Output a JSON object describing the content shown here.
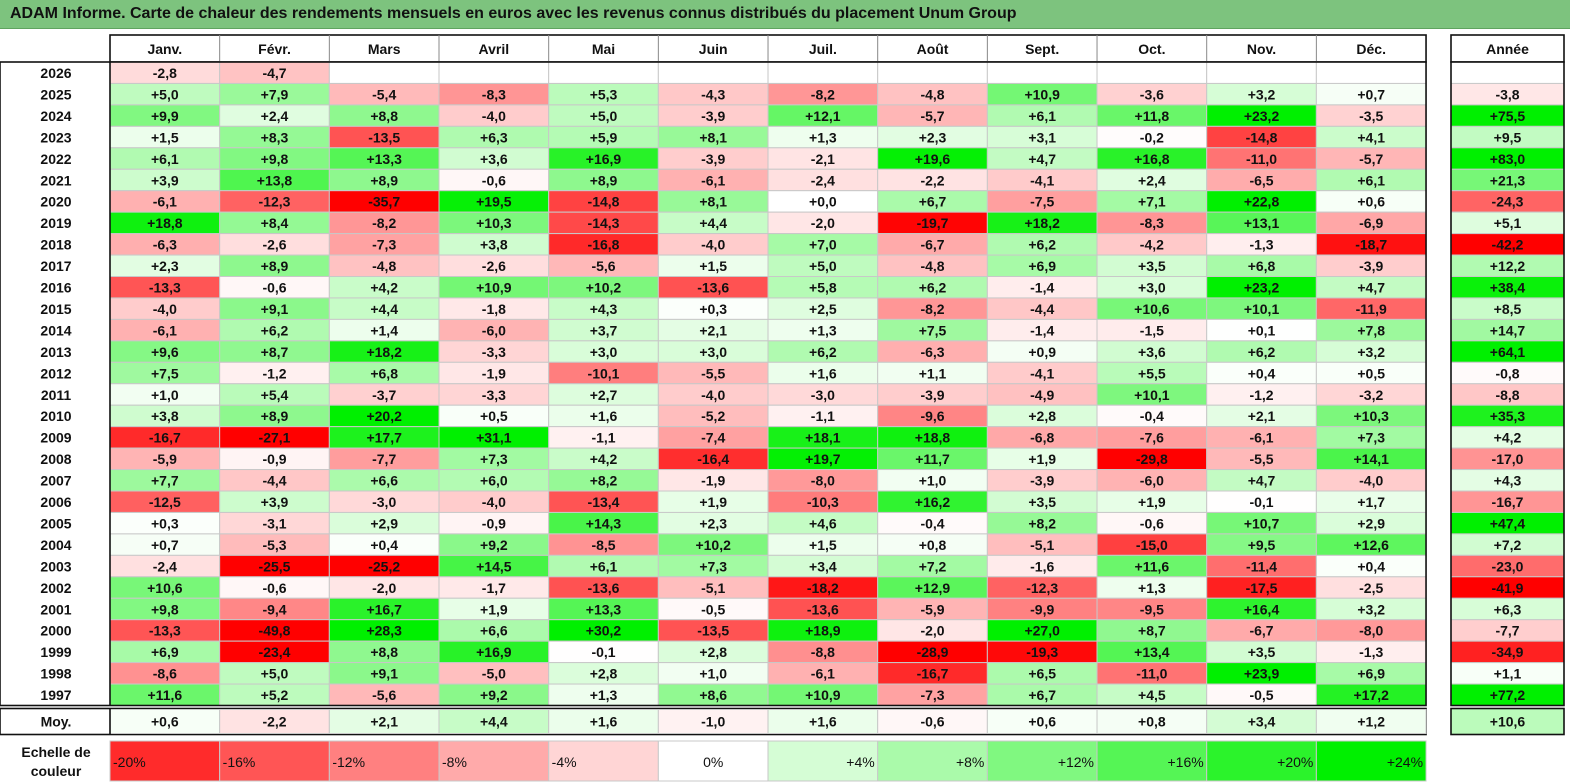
{
  "title": "ADAM Informe. Carte de chaleur des rendements mensuels en euros avec les revenus connus distribués du placement Unum Group",
  "colors": {
    "title_bg": "#7dc37e",
    "positive_max": "#00f000",
    "negative_max": "#ff0000",
    "neutral": "#ffffff"
  },
  "chart_data": {
    "type": "heatmap",
    "title": "ADAM Informe. Carte de chaleur des rendements mensuels en euros avec les revenus connus distribués du placement Unum Group",
    "months": [
      "Janv.",
      "Févr.",
      "Mars",
      "Avril",
      "Mai",
      "Juin",
      "Juil.",
      "Août",
      "Sept.",
      "Oct.",
      "Nov.",
      "Déc."
    ],
    "year_header": "Année",
    "rows": [
      {
        "year": "2026",
        "months": [
          "-2,8",
          "-4,7",
          "",
          "",
          "",
          "",
          "",
          "",
          "",
          "",
          "",
          ""
        ],
        "annual": ""
      },
      {
        "year": "2025",
        "months": [
          "+5,0",
          "+7,9",
          "-5,4",
          "-8,3",
          "+5,3",
          "-4,3",
          "-8,2",
          "-4,8",
          "+10,9",
          "-3,6",
          "+3,2",
          "+0,7"
        ],
        "annual": "-3,8"
      },
      {
        "year": "2024",
        "months": [
          "+9,9",
          "+2,4",
          "+8,8",
          "-4,0",
          "+5,0",
          "-3,9",
          "+12,1",
          "-5,7",
          "+6,1",
          "+11,8",
          "+23,2",
          "-3,5"
        ],
        "annual": "+75,5"
      },
      {
        "year": "2023",
        "months": [
          "+1,5",
          "+8,3",
          "-13,5",
          "+6,3",
          "+5,9",
          "+8,1",
          "+1,3",
          "+2,3",
          "+3,1",
          "-0,2",
          "-14,8",
          "+4,1"
        ],
        "annual": "+9,5"
      },
      {
        "year": "2022",
        "months": [
          "+6,1",
          "+9,8",
          "+13,3",
          "+3,6",
          "+16,9",
          "-3,9",
          "-2,1",
          "+19,6",
          "+4,7",
          "+16,8",
          "-11,0",
          "-5,7"
        ],
        "annual": "+83,0"
      },
      {
        "year": "2021",
        "months": [
          "+3,9",
          "+13,8",
          "+8,9",
          "-0,6",
          "+8,9",
          "-6,1",
          "-2,4",
          "-2,2",
          "-4,1",
          "+2,4",
          "-6,5",
          "+6,1"
        ],
        "annual": "+21,3"
      },
      {
        "year": "2020",
        "months": [
          "-6,1",
          "-12,3",
          "-35,7",
          "+19,5",
          "-14,8",
          "+8,1",
          "+0,0",
          "+6,7",
          "-7,5",
          "+7,1",
          "+22,8",
          "+0,6"
        ],
        "annual": "-24,3"
      },
      {
        "year": "2019",
        "months": [
          "+18,8",
          "+8,4",
          "-8,2",
          "+10,3",
          "-14,3",
          "+4,4",
          "-2,0",
          "-19,7",
          "+18,2",
          "-8,3",
          "+13,1",
          "-6,9"
        ],
        "annual": "+5,1"
      },
      {
        "year": "2018",
        "months": [
          "-6,3",
          "-2,6",
          "-7,3",
          "+3,8",
          "-16,8",
          "-4,0",
          "+7,0",
          "-6,7",
          "+6,2",
          "-4,2",
          "-1,3",
          "-18,7"
        ],
        "annual": "-42,2"
      },
      {
        "year": "2017",
        "months": [
          "+2,3",
          "+8,9",
          "-4,8",
          "-2,6",
          "-5,6",
          "+1,5",
          "+5,0",
          "-4,8",
          "+6,9",
          "+3,5",
          "+6,8",
          "-3,9"
        ],
        "annual": "+12,2"
      },
      {
        "year": "2016",
        "months": [
          "-13,3",
          "-0,6",
          "+4,2",
          "+10,9",
          "+10,2",
          "-13,6",
          "+5,8",
          "+6,2",
          "-1,4",
          "+3,0",
          "+23,2",
          "+4,7"
        ],
        "annual": "+38,4"
      },
      {
        "year": "2015",
        "months": [
          "-4,0",
          "+9,1",
          "+4,4",
          "-1,8",
          "+4,3",
          "+0,3",
          "+2,5",
          "-8,2",
          "-4,4",
          "+10,6",
          "+10,1",
          "-11,9"
        ],
        "annual": "+8,5"
      },
      {
        "year": "2014",
        "months": [
          "-6,1",
          "+6,2",
          "+1,4",
          "-6,0",
          "+3,7",
          "+2,1",
          "+1,3",
          "+7,5",
          "-1,4",
          "-1,5",
          "+0,1",
          "+7,8"
        ],
        "annual": "+14,7"
      },
      {
        "year": "2013",
        "months": [
          "+9,6",
          "+8,7",
          "+18,2",
          "-3,3",
          "+3,0",
          "+3,0",
          "+6,2",
          "-6,3",
          "+0,9",
          "+3,6",
          "+6,2",
          "+3,2"
        ],
        "annual": "+64,1"
      },
      {
        "year": "2012",
        "months": [
          "+7,5",
          "-1,2",
          "+6,8",
          "-1,9",
          "-10,1",
          "-5,5",
          "+1,6",
          "+1,1",
          "-4,1",
          "+5,5",
          "+0,4",
          "+0,5"
        ],
        "annual": "-0,8"
      },
      {
        "year": "2011",
        "months": [
          "+1,0",
          "+5,4",
          "-3,7",
          "-3,3",
          "+2,7",
          "-4,0",
          "-3,0",
          "-3,9",
          "-4,9",
          "+10,1",
          "-1,2",
          "-3,2"
        ],
        "annual": "-8,8"
      },
      {
        "year": "2010",
        "months": [
          "+3,8",
          "+8,9",
          "+20,2",
          "+0,5",
          "+1,6",
          "-5,2",
          "-1,1",
          "-9,6",
          "+2,8",
          "-0,4",
          "+2,1",
          "+10,3"
        ],
        "annual": "+35,3"
      },
      {
        "year": "2009",
        "months": [
          "-16,7",
          "-27,1",
          "+17,7",
          "+31,1",
          "-1,1",
          "-7,4",
          "+18,1",
          "+18,8",
          "-6,8",
          "-7,6",
          "-6,1",
          "+7,3"
        ],
        "annual": "+4,2"
      },
      {
        "year": "2008",
        "months": [
          "-5,9",
          "-0,9",
          "-7,7",
          "+7,3",
          "+4,2",
          "-16,4",
          "+19,7",
          "+11,7",
          "+1,9",
          "-29,8",
          "-5,5",
          "+14,1"
        ],
        "annual": "-17,0"
      },
      {
        "year": "2007",
        "months": [
          "+7,7",
          "-4,4",
          "+6,6",
          "+6,0",
          "+8,2",
          "-1,9",
          "-8,0",
          "+1,0",
          "-3,9",
          "-6,0",
          "+4,7",
          "-4,0"
        ],
        "annual": "+4,3"
      },
      {
        "year": "2006",
        "months": [
          "-12,5",
          "+3,9",
          "-3,0",
          "-4,0",
          "-13,4",
          "+1,9",
          "-10,3",
          "+16,2",
          "+3,5",
          "+1,9",
          "-0,1",
          "+1,7"
        ],
        "annual": "-16,7"
      },
      {
        "year": "2005",
        "months": [
          "+0,3",
          "-3,1",
          "+2,9",
          "-0,9",
          "+14,3",
          "+2,3",
          "+4,6",
          "-0,4",
          "+8,2",
          "-0,6",
          "+10,7",
          "+2,9"
        ],
        "annual": "+47,4"
      },
      {
        "year": "2004",
        "months": [
          "+0,7",
          "-5,3",
          "+0,4",
          "+9,2",
          "-8,5",
          "+10,2",
          "+1,5",
          "+0,8",
          "-5,1",
          "-15,0",
          "+9,5",
          "+12,6"
        ],
        "annual": "+7,2"
      },
      {
        "year": "2003",
        "months": [
          "-2,4",
          "-25,5",
          "-25,2",
          "+14,5",
          "+6,1",
          "+7,3",
          "+3,4",
          "+7,2",
          "-1,6",
          "+11,6",
          "-11,4",
          "+0,4"
        ],
        "annual": "-23,0"
      },
      {
        "year": "2002",
        "months": [
          "+10,6",
          "-0,6",
          "-2,0",
          "-1,7",
          "-13,6",
          "-5,1",
          "-18,2",
          "+12,9",
          "-12,3",
          "+1,3",
          "-17,5",
          "-2,5"
        ],
        "annual": "-41,9"
      },
      {
        "year": "2001",
        "months": [
          "+9,8",
          "-9,4",
          "+16,7",
          "+1,9",
          "+13,3",
          "-0,5",
          "-13,6",
          "-5,9",
          "-9,9",
          "-9,5",
          "+16,4",
          "+3,2"
        ],
        "annual": "+6,3"
      },
      {
        "year": "2000",
        "months": [
          "-13,3",
          "-49,8",
          "+28,3",
          "+6,6",
          "+30,2",
          "-13,5",
          "+18,9",
          "-2,0",
          "+27,0",
          "+8,7",
          "-6,7",
          "-8,0"
        ],
        "annual": "-7,7"
      },
      {
        "year": "1999",
        "months": [
          "+6,9",
          "-23,4",
          "+8,8",
          "+16,9",
          "-0,1",
          "+2,8",
          "-8,8",
          "-28,9",
          "-19,3",
          "+13,4",
          "+3,5",
          "-1,3"
        ],
        "annual": "-34,9"
      },
      {
        "year": "1998",
        "months": [
          "-8,6",
          "+5,0",
          "+9,1",
          "-5,0",
          "+2,8",
          "+1,0",
          "-6,1",
          "-16,7",
          "+6,5",
          "-11,0",
          "+23,9",
          "+6,9"
        ],
        "annual": "+1,1"
      },
      {
        "year": "1997",
        "months": [
          "+11,6",
          "+5,2",
          "-5,6",
          "+9,2",
          "+1,3",
          "+8,6",
          "+10,9",
          "-7,3",
          "+6,7",
          "+4,5",
          "-0,5",
          "+17,2"
        ],
        "annual": "+77,2"
      }
    ],
    "average": {
      "label": "Moy.",
      "months": [
        "+0,6",
        "-2,2",
        "+2,1",
        "+4,4",
        "+1,6",
        "-1,0",
        "+1,6",
        "-0,6",
        "+0,6",
        "+0,8",
        "+3,4",
        "+1,2"
      ],
      "annual": "+10,6"
    },
    "scale": {
      "label_line1": "Echelle de",
      "label_line2": "couleur",
      "items": [
        {
          "label": "-20%",
          "value": -20
        },
        {
          "label": "-16%",
          "value": -16
        },
        {
          "label": "-12%",
          "value": -12
        },
        {
          "label": "-8%",
          "value": -8
        },
        {
          "label": "-4%",
          "value": -4
        },
        {
          "label": "0%",
          "value": 0
        },
        {
          "label": "+4%",
          "value": 4
        },
        {
          "label": "+8%",
          "value": 8
        },
        {
          "label": "+12%",
          "value": 12
        },
        {
          "label": "+16%",
          "value": 16
        },
        {
          "label": "+20%",
          "value": 20
        },
        {
          "label": "+24%",
          "value": 24
        }
      ]
    }
  }
}
